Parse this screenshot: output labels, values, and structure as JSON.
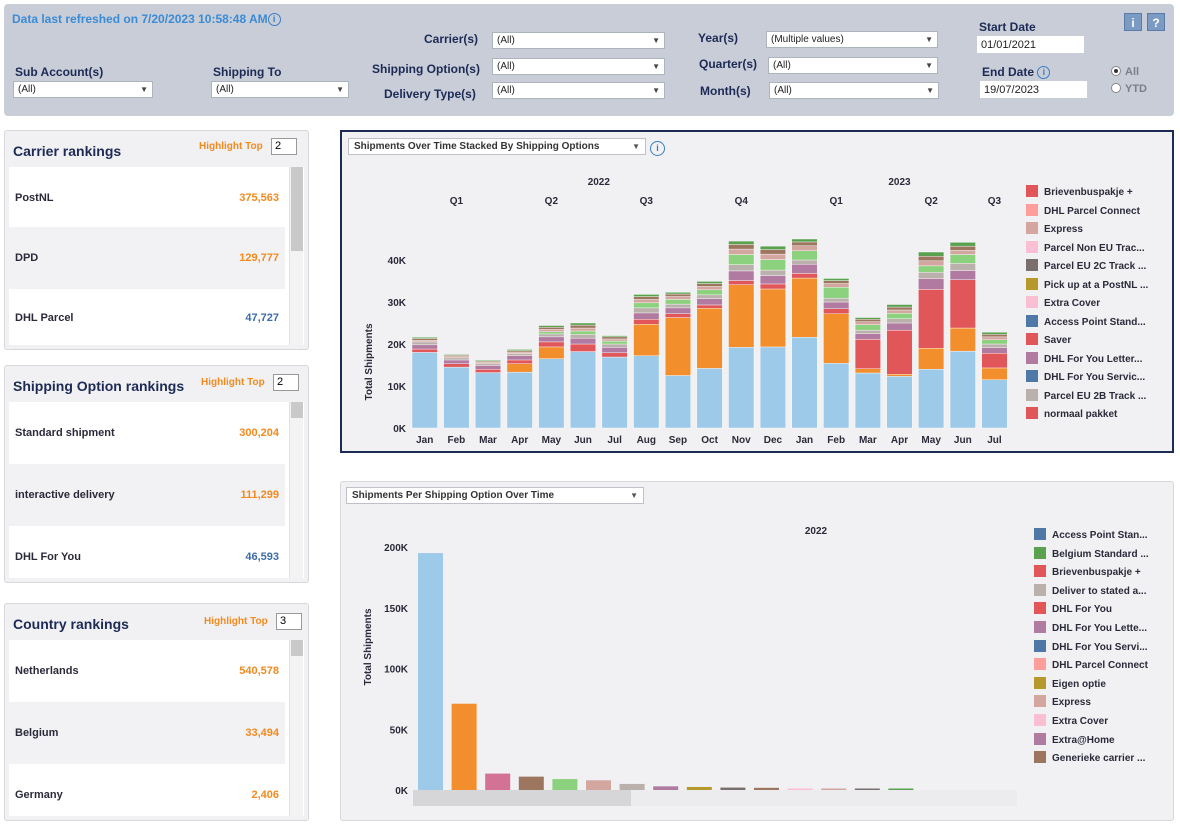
{
  "filters": {
    "refresh_text": "Data last refreshed on 7/20/2023 10:58:48 AM",
    "sub_account_label": "Sub Account(s)",
    "sub_account_value": "(All)",
    "shipping_to_label": "Shipping To",
    "shipping_to_value": "(All)",
    "carrier_label": "Carrier(s)",
    "carrier_value": "(All)",
    "shipping_option_label": "Shipping Option(s)",
    "shipping_option_value": "(All)",
    "delivery_type_label": "Delivery Type(s)",
    "delivery_type_value": "(All)",
    "year_label": "Year(s)",
    "year_value": "(Multiple values)",
    "quarter_label": "Quarter(s)",
    "quarter_value": "(All)",
    "month_label": "Month(s)",
    "month_value": "(All)",
    "start_date_label": "Start Date",
    "start_date_value": "01/01/2021",
    "end_date_label": "End Date",
    "end_date_value": "19/07/2023",
    "radio_all": "All",
    "radio_ytd": "YTD",
    "info_btn": "i",
    "help_btn": "?",
    "info_glyph": "i"
  },
  "rankings": {
    "highlight_label": "Highlight Top",
    "carrier": {
      "title": "Carrier rankings",
      "top": "2",
      "rows": [
        {
          "name": "PostNL",
          "value": "375,563",
          "color": "#f28a1e"
        },
        {
          "name": "DPD",
          "value": "129,777",
          "color": "#f28a1e"
        },
        {
          "name": "DHL Parcel",
          "value": "47,727",
          "color": "#3c6ca8"
        }
      ]
    },
    "shipping": {
      "title": "Shipping Option  rankings",
      "top": "2",
      "rows": [
        {
          "name": "Standard shipment",
          "value": "300,204",
          "color": "#f28a1e"
        },
        {
          "name": "interactive delivery",
          "value": "111,299",
          "color": "#f28a1e"
        },
        {
          "name": "DHL For You",
          "value": "46,593",
          "color": "#3c6ca8"
        }
      ]
    },
    "country": {
      "title": "Country rankings",
      "top": "3",
      "rows": [
        {
          "name": "Netherlands",
          "value": "540,578",
          "color": "#f28a1e"
        },
        {
          "name": "Belgium",
          "value": "33,494",
          "color": "#f28a1e"
        },
        {
          "name": "Germany",
          "value": "2,406",
          "color": "#f28a1e"
        }
      ]
    }
  },
  "chart1": {
    "selector": "Shipments Over Time Stacked By Shipping Options"
  },
  "chart2": {
    "selector": "Shipments Per Shipping Option Over Time"
  },
  "chart_data": [
    {
      "type": "bar",
      "stacked": true,
      "ylabel": "Total Shipments",
      "ylim": [
        0,
        46000
      ],
      "yticks": [
        "0K",
        "10K",
        "20K",
        "30K",
        "40K"
      ],
      "years": [
        {
          "label": "2022",
          "start": 0,
          "end": 11
        },
        {
          "label": "2023",
          "start": 12,
          "end": 18
        }
      ],
      "quarters": [
        {
          "label": "Q1",
          "start": 0,
          "end": 2
        },
        {
          "label": "Q2",
          "start": 3,
          "end": 5
        },
        {
          "label": "Q3",
          "start": 6,
          "end": 8
        },
        {
          "label": "Q4",
          "start": 9,
          "end": 11
        },
        {
          "label": "Q1",
          "start": 12,
          "end": 14
        },
        {
          "label": "Q2",
          "start": 15,
          "end": 17
        },
        {
          "label": "Q3",
          "start": 18,
          "end": 18
        }
      ],
      "categories": [
        "Jan",
        "Feb",
        "Mar",
        "Apr",
        "May",
        "Jun",
        "Jul",
        "Aug",
        "Sep",
        "Oct",
        "Nov",
        "Dec",
        "Jan",
        "Feb",
        "Mar",
        "Apr",
        "May",
        "Jun",
        "Jul"
      ],
      "series": [
        {
          "name": "Standard shipment",
          "color": "#9ecae9",
          "values": [
            18000,
            14500,
            13200,
            13300,
            16500,
            18200,
            16900,
            17200,
            12500,
            14200,
            19200,
            19300,
            21600,
            15400,
            13100,
            12300,
            14000,
            18300,
            11500
          ]
        },
        {
          "name": "interactive delivery",
          "color": "#f28e2b",
          "values": [
            0,
            0,
            0,
            2000,
            2800,
            0,
            0,
            7500,
            13800,
            14300,
            14900,
            13800,
            14100,
            11800,
            1000,
            500,
            5000,
            5500,
            2800
          ]
        },
        {
          "name": "normaal pakket",
          "color": "#e15759",
          "values": [
            800,
            800,
            800,
            900,
            1200,
            1800,
            1000,
            1200,
            900,
            800,
            1000,
            1200,
            1100,
            1200,
            7000,
            10500,
            14000,
            11500,
            3500
          ]
        },
        {
          "name": "DHL For You Letter...",
          "color": "#b07aa1",
          "values": [
            1000,
            900,
            900,
            1000,
            1200,
            1400,
            1300,
            1500,
            1400,
            1500,
            2300,
            2000,
            2200,
            1600,
            1400,
            1700,
            2600,
            2200,
            1300
          ]
        },
        {
          "name": "Parcel EU 2B Track ...",
          "color": "#bab0ac",
          "values": [
            700,
            500,
            400,
            500,
            700,
            900,
            800,
            1200,
            900,
            900,
            1500,
            1300,
            1000,
            900,
            800,
            1000,
            1500,
            1700,
            900
          ]
        },
        {
          "name": "Access Point Stand...",
          "color": "#8cd17d",
          "values": [
            0,
            0,
            0,
            0,
            500,
            800,
            700,
            1200,
            1100,
            1200,
            2400,
            2500,
            2200,
            2600,
            1300,
            1300,
            1500,
            2100,
            1000
          ]
        },
        {
          "name": "Express",
          "color": "#d4a6a0",
          "values": [
            400,
            300,
            300,
            400,
            600,
            700,
            500,
            800,
            700,
            800,
            1300,
            1300,
            1200,
            900,
            700,
            800,
            1200,
            1000,
            700
          ]
        },
        {
          "name": "DHL For You Servic...",
          "color": "#9d7660",
          "values": [
            400,
            300,
            300,
            300,
            500,
            700,
            500,
            700,
            600,
            700,
            1100,
            1100,
            900,
            700,
            600,
            700,
            1100,
            1000,
            600
          ]
        },
        {
          "name": "Extra Cover",
          "color": "#59a14f",
          "values": [
            300,
            200,
            200,
            300,
            400,
            500,
            300,
            500,
            400,
            500,
            800,
            800,
            700,
            500,
            400,
            600,
            1000,
            900,
            500
          ]
        }
      ]
    },
    {
      "type": "bar",
      "title": "2022",
      "ylabel": "Total Shipments",
      "ylim": [
        0,
        210000
      ],
      "yticks": [
        "0K",
        "50K",
        "100K",
        "150K",
        "200K"
      ],
      "values": [
        195000,
        71000,
        13500,
        11000,
        9000,
        8000,
        5000,
        3000,
        2500,
        2000,
        1800,
        1200,
        1000,
        800,
        600
      ],
      "colors": [
        "#9ecae9",
        "#f28e2b",
        "#d37295",
        "#9d7660",
        "#8cd17d",
        "#d4a6a0",
        "#bab0ac",
        "#b07aa1",
        "#b6992d",
        "#79706e",
        "#9d7660",
        "#fabfd2",
        "#d4a6a0",
        "#79706e",
        "#59a14f"
      ]
    }
  ],
  "legend1": [
    {
      "name": "Brievenbuspakje +",
      "color": "#e15759"
    },
    {
      "name": "DHL Parcel Connect",
      "color": "#ff9d9a"
    },
    {
      "name": "Express",
      "color": "#d4a6a0"
    },
    {
      "name": "Parcel Non EU Trac...",
      "color": "#fabfd2"
    },
    {
      "name": "Parcel EU 2C Track ...",
      "color": "#79706e"
    },
    {
      "name": "Pick up at a PostNL ...",
      "color": "#b6992d"
    },
    {
      "name": "Extra Cover",
      "color": "#fabfd2"
    },
    {
      "name": "Access Point Stand...",
      "color": "#4e79a7"
    },
    {
      "name": "Saver",
      "color": "#e15759"
    },
    {
      "name": "DHL For You Letter...",
      "color": "#b07aa1"
    },
    {
      "name": "DHL For You Servic...",
      "color": "#4e79a7"
    },
    {
      "name": "Parcel EU 2B Track ...",
      "color": "#bab0ac"
    },
    {
      "name": "normaal pakket",
      "color": "#e15759"
    }
  ],
  "legend2": [
    {
      "name": "Access Point Stan...",
      "color": "#4e79a7"
    },
    {
      "name": "Belgium Standard ...",
      "color": "#59a14f"
    },
    {
      "name": "Brievenbuspakje +",
      "color": "#e15759"
    },
    {
      "name": "Deliver to stated a...",
      "color": "#bab0ac"
    },
    {
      "name": "DHL For You",
      "color": "#e15759"
    },
    {
      "name": "DHL For You Lette...",
      "color": "#b07aa1"
    },
    {
      "name": "DHL For You Servi...",
      "color": "#4e79a7"
    },
    {
      "name": "DHL Parcel Connect",
      "color": "#ff9d9a"
    },
    {
      "name": "Eigen optie",
      "color": "#b6992d"
    },
    {
      "name": "Express",
      "color": "#d4a6a0"
    },
    {
      "name": "Extra Cover",
      "color": "#fabfd2"
    },
    {
      "name": "Extra@Home",
      "color": "#b07aa1"
    },
    {
      "name": "Generieke carrier ...",
      "color": "#9d7660"
    }
  ]
}
